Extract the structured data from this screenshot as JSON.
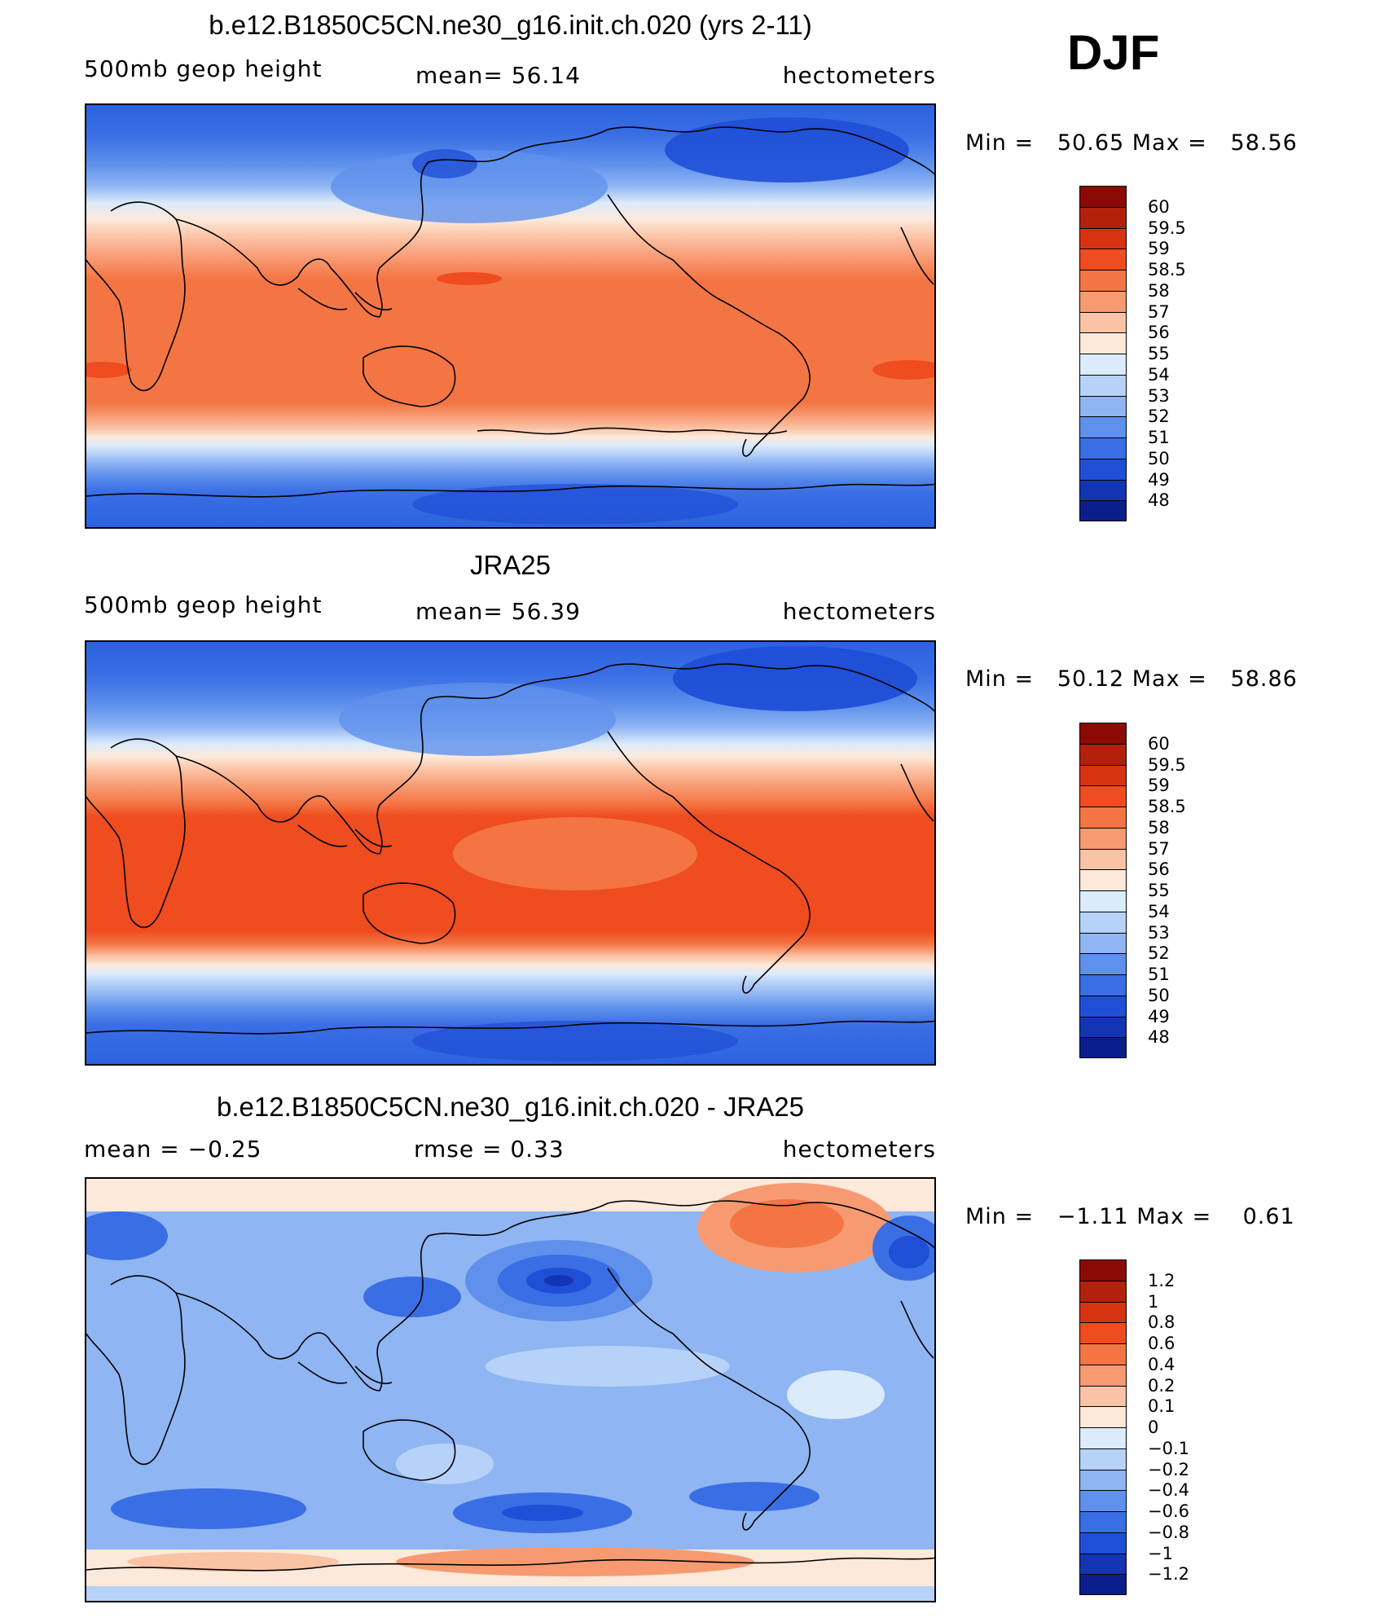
{
  "season_label": "DJF",
  "panels": [
    {
      "title": "b.e12.B1850C5CN.ne30_g16.init.ch.020 (yrs 2-11)",
      "left_label": "500mb geop height",
      "center_label": "mean=  56.14",
      "right_label": "hectometers",
      "min_label": "Min =",
      "min_value": "50.65",
      "max_label": "Max =",
      "max_value": "58.56",
      "colorbar": {
        "labels": [
          "60",
          "59.5",
          "59",
          "58.5",
          "58",
          "57",
          "56",
          "55",
          "54",
          "53",
          "52",
          "51",
          "50",
          "49",
          "48"
        ],
        "colors": [
          "#8b0a05",
          "#b3200c",
          "#d83311",
          "#ef4c1f",
          "#f47544",
          "#f79a72",
          "#fbc3a5",
          "#fde9d9",
          "#dcebfb",
          "#b7d2f8",
          "#8fb5f3",
          "#5f91ec",
          "#3a6ee4",
          "#1f4fd6",
          "#1435b3",
          "#0a1e8a"
        ]
      }
    },
    {
      "title": "JRA25",
      "left_label": "500mb geop height",
      "center_label": "mean=  56.39",
      "right_label": "hectometers",
      "min_label": "Min =",
      "min_value": "50.12",
      "max_label": "Max =",
      "max_value": "58.86",
      "colorbar": {
        "labels": [
          "60",
          "59.5",
          "59",
          "58.5",
          "58",
          "57",
          "56",
          "55",
          "54",
          "53",
          "52",
          "51",
          "50",
          "49",
          "48"
        ],
        "colors": [
          "#8b0a05",
          "#b3200c",
          "#d83311",
          "#ef4c1f",
          "#f47544",
          "#f79a72",
          "#fbc3a5",
          "#fde9d9",
          "#dcebfb",
          "#b7d2f8",
          "#8fb5f3",
          "#5f91ec",
          "#3a6ee4",
          "#1f4fd6",
          "#1435b3",
          "#0a1e8a"
        ]
      }
    },
    {
      "title": "b.e12.B1850C5CN.ne30_g16.init.ch.020 - JRA25",
      "left_label": "mean =  −0.25",
      "center_label": "rmse =   0.33",
      "right_label": "hectometers",
      "min_label": "Min =",
      "min_value": "−1.11",
      "max_label": "Max =",
      "max_value": "0.61",
      "colorbar": {
        "labels": [
          "1.2",
          "1",
          "0.8",
          "0.6",
          "0.4",
          "0.2",
          "0.1",
          "0",
          "−0.1",
          "−0.2",
          "−0.4",
          "−0.6",
          "−0.8",
          "−1",
          "−1.2"
        ],
        "colors": [
          "#8b0a05",
          "#b3200c",
          "#d83311",
          "#ef4c1f",
          "#f47544",
          "#f79a72",
          "#fbc3a5",
          "#fde9d9",
          "#dcebfb",
          "#b7d2f8",
          "#8fb5f3",
          "#5f91ec",
          "#3a6ee4",
          "#1f4fd6",
          "#1435b3",
          "#0a1e8a"
        ]
      }
    }
  ]
}
